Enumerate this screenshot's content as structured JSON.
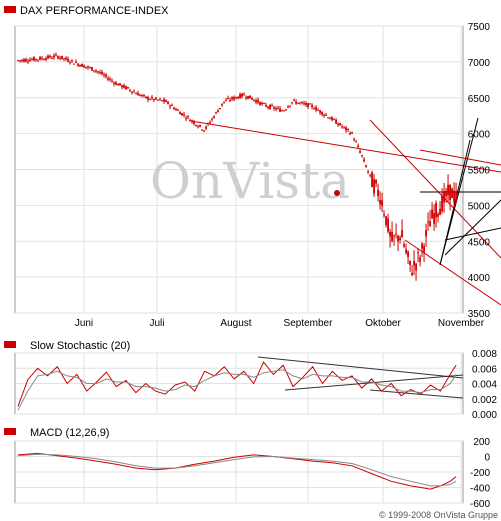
{
  "colors": {
    "primary": "#cc0000",
    "secondary": "#888888",
    "grid": "#e2e2e2",
    "frame": "#9a9a9a",
    "trendline": "#cc0000",
    "trendline_black": "#000000"
  },
  "watermark": {
    "text": "OnVista",
    "dot_color": "#cc0000"
  },
  "copyright": "© 1999-2008 OnVista Gruppe",
  "chart_data": [
    {
      "type": "candlestick",
      "title": "DAX PERFORMANCE-INDEX",
      "legend_placement": "top-left",
      "grid": true,
      "ylim": [
        3500,
        7500
      ],
      "yticks": [
        "7500",
        "7000",
        "6500",
        "6000",
        "5500",
        "5000",
        "4500",
        "4000",
        "3500"
      ],
      "month_labels": [
        "Juni",
        "Juli",
        "August",
        "September",
        "Oktober",
        "November"
      ],
      "x_weeks": [
        0,
        2,
        4,
        6,
        8,
        10,
        11,
        13,
        15,
        17,
        19,
        21,
        23,
        24,
        25,
        27,
        28,
        30,
        32,
        34,
        35,
        36,
        37,
        38,
        39,
        40,
        41,
        42,
        43,
        44,
        44.6
      ],
      "close": [
        7020,
        7040,
        7080,
        6980,
        6880,
        6700,
        6640,
        6500,
        6450,
        6250,
        6050,
        6450,
        6540,
        6480,
        6400,
        6320,
        6450,
        6380,
        6200,
        6000,
        5700,
        5350,
        5100,
        4500,
        4600,
        4100,
        4300,
        4800,
        5000,
        5200,
        5100
      ]
    },
    {
      "type": "line",
      "title": "Slow Stochastic (20)",
      "legend_placement": "top-left",
      "grid": true,
      "ylim": [
        0.0,
        0.008
      ],
      "yticks": [
        "0.008",
        "0.006",
        "0.004",
        "0.002",
        "0.000"
      ],
      "x_weeks": [
        0,
        1,
        2,
        3,
        4,
        5,
        6,
        7,
        8,
        9,
        10,
        11,
        12,
        13,
        14,
        15,
        16,
        17,
        18,
        19,
        20,
        21,
        22,
        23,
        24,
        25,
        26,
        27,
        28,
        29,
        30,
        31,
        32,
        33,
        34,
        35,
        36,
        37,
        38,
        39,
        40,
        41,
        42,
        43,
        44,
        44.6
      ],
      "series": [
        {
          "values": [
            0.001,
            0.0045,
            0.006,
            0.005,
            0.0062,
            0.004,
            0.0052,
            0.003,
            0.0042,
            0.0055,
            0.0036,
            0.0044,
            0.0028,
            0.004,
            0.003,
            0.0026,
            0.0038,
            0.0042,
            0.003,
            0.0056,
            0.005,
            0.0062,
            0.0046,
            0.0056,
            0.004,
            0.0068,
            0.0052,
            0.0064,
            0.0036,
            0.0048,
            0.0062,
            0.004,
            0.0056,
            0.0044,
            0.005,
            0.0034,
            0.0046,
            0.003,
            0.004,
            0.0024,
            0.0032,
            0.0026,
            0.0038,
            0.003,
            0.0052,
            0.0064
          ]
        },
        {
          "values": [
            0.0005,
            0.003,
            0.005,
            0.0052,
            0.0056,
            0.005,
            0.0048,
            0.004,
            0.004,
            0.0046,
            0.0042,
            0.0042,
            0.0036,
            0.0036,
            0.0034,
            0.003,
            0.0032,
            0.0038,
            0.0036,
            0.0044,
            0.005,
            0.0054,
            0.0052,
            0.0052,
            0.0048,
            0.0054,
            0.0056,
            0.0058,
            0.005,
            0.0046,
            0.0052,
            0.005,
            0.005,
            0.0048,
            0.0048,
            0.0042,
            0.0042,
            0.0038,
            0.0036,
            0.003,
            0.003,
            0.0028,
            0.0032,
            0.0032,
            0.004,
            0.0052
          ]
        }
      ]
    },
    {
      "type": "line",
      "title": "MACD (12,26,9)",
      "legend_placement": "top-left",
      "grid": true,
      "ylim": [
        -600,
        200
      ],
      "yticks": [
        "200",
        "0",
        "-200",
        "-400",
        "-600"
      ],
      "x_weeks": [
        0,
        2,
        4,
        6,
        8,
        10,
        12,
        14,
        16,
        18,
        20,
        22,
        24,
        26,
        28,
        30,
        32,
        34,
        36,
        38,
        40,
        41,
        42,
        43,
        44,
        44.6
      ],
      "series": [
        {
          "values": [
            20,
            40,
            10,
            -20,
            -60,
            -100,
            -150,
            -170,
            -150,
            -100,
            -60,
            -10,
            20,
            0,
            -30,
            -60,
            -80,
            -120,
            -220,
            -320,
            -380,
            -400,
            -420,
            -380,
            -320,
            -260
          ]
        },
        {
          "values": [
            10,
            30,
            20,
            0,
            -30,
            -70,
            -120,
            -150,
            -150,
            -120,
            -80,
            -40,
            -5,
            0,
            -20,
            -40,
            -60,
            -90,
            -170,
            -260,
            -320,
            -350,
            -380,
            -380,
            -360,
            -320
          ]
        }
      ]
    }
  ]
}
